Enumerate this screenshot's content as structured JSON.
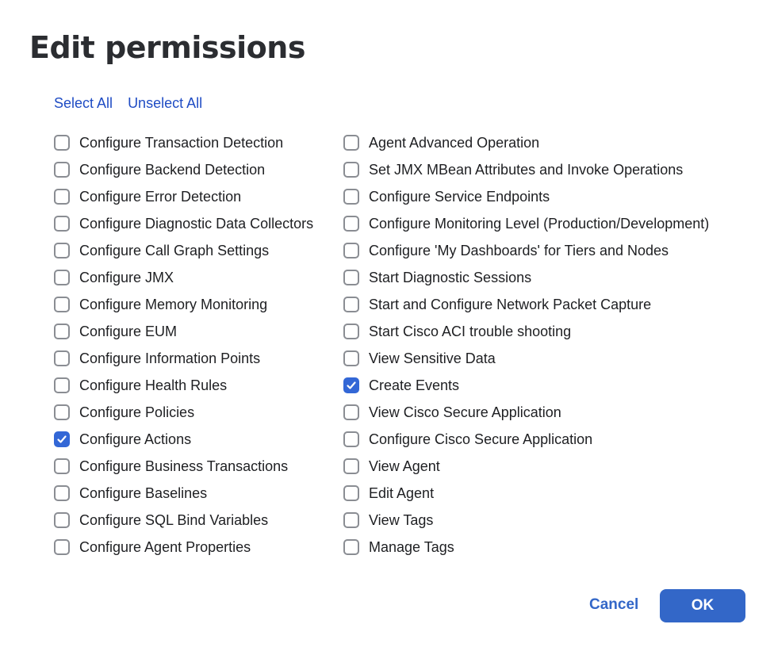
{
  "dialog": {
    "title": "Edit permissions"
  },
  "links": {
    "select_all": "Select All",
    "unselect_all": "Unselect All"
  },
  "colors": {
    "accent": "#3367d6",
    "link": "#1f4cc4"
  },
  "permissions": {
    "column1": [
      {
        "label": "Configure Transaction Detection",
        "checked": false
      },
      {
        "label": "Configure Backend Detection",
        "checked": false
      },
      {
        "label": "Configure Error Detection",
        "checked": false
      },
      {
        "label": "Configure Diagnostic Data Collectors",
        "checked": false
      },
      {
        "label": "Configure Call Graph Settings",
        "checked": false
      },
      {
        "label": "Configure JMX",
        "checked": false
      },
      {
        "label": "Configure Memory Monitoring",
        "checked": false
      },
      {
        "label": "Configure EUM",
        "checked": false
      },
      {
        "label": "Configure Information Points",
        "checked": false
      },
      {
        "label": "Configure Health Rules",
        "checked": false
      },
      {
        "label": "Configure Policies",
        "checked": false
      },
      {
        "label": "Configure Actions",
        "checked": true
      },
      {
        "label": "Configure Business Transactions",
        "checked": false
      },
      {
        "label": "Configure Baselines",
        "checked": false
      },
      {
        "label": "Configure SQL Bind Variables",
        "checked": false
      },
      {
        "label": "Configure Agent Properties",
        "checked": false
      }
    ],
    "column2": [
      {
        "label": "Agent Advanced Operation",
        "checked": false
      },
      {
        "label": "Set JMX MBean Attributes and Invoke Operations",
        "checked": false
      },
      {
        "label": "Configure Service Endpoints",
        "checked": false
      },
      {
        "label": "Configure Monitoring Level (Production/Development)",
        "checked": false
      },
      {
        "label": "Configure 'My Dashboards' for Tiers and Nodes",
        "checked": false
      },
      {
        "label": "Start Diagnostic Sessions",
        "checked": false
      },
      {
        "label": "Start and Configure Network Packet Capture",
        "checked": false
      },
      {
        "label": "Start Cisco ACI trouble shooting",
        "checked": false
      },
      {
        "label": "View Sensitive Data",
        "checked": false
      },
      {
        "label": "Create Events",
        "checked": true
      },
      {
        "label": "View Cisco Secure Application",
        "checked": false
      },
      {
        "label": "Configure Cisco Secure Application",
        "checked": false
      },
      {
        "label": "View Agent",
        "checked": false
      },
      {
        "label": "Edit Agent",
        "checked": false
      },
      {
        "label": "View Tags",
        "checked": false
      },
      {
        "label": "Manage Tags",
        "checked": false
      }
    ]
  },
  "footer": {
    "cancel": "Cancel",
    "ok": "OK"
  }
}
